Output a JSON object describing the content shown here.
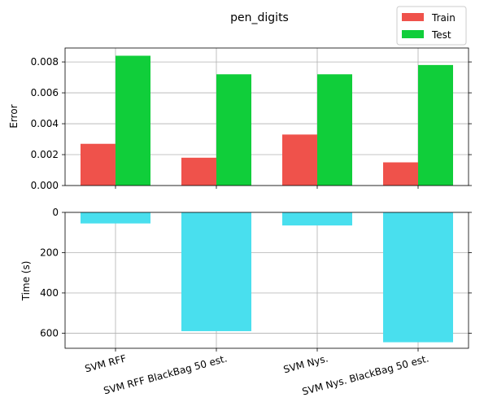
{
  "chart_data": [
    {
      "type": "bar",
      "title": "pen_digits",
      "ylabel": "Error",
      "categories": [
        "SVM RFF",
        "SVM RFF BlackBag 50 est.",
        "SVM Nys.",
        "SVM Nys. BlackBag 50 est."
      ],
      "series": [
        {
          "name": "Train",
          "color": "#ef524b",
          "values": [
            0.0027,
            0.0018,
            0.0033,
            0.0015
          ]
        },
        {
          "name": "Test",
          "color": "#10ce3a",
          "values": [
            0.0084,
            0.0072,
            0.0072,
            0.0078
          ]
        }
      ],
      "ylim": [
        0,
        0.0089
      ],
      "yticks": [
        0,
        0.002,
        0.004,
        0.006,
        0.008
      ],
      "ytick_labels": [
        "0.000",
        "0.002",
        "0.004",
        "0.006",
        "0.008"
      ],
      "grid": true,
      "legend": "top-right"
    },
    {
      "type": "bar",
      "ylabel": "Time (s)",
      "categories": [
        "SVM RFF",
        "SVM RFF BlackBag 50 est.",
        "SVM Nys.",
        "SVM Nys. BlackBag 50 est."
      ],
      "series": [
        {
          "color": "#49dfee",
          "values": [
            55,
            590,
            65,
            645
          ]
        }
      ],
      "ylim": [
        0,
        675
      ],
      "y_inverted": true,
      "yticks": [
        0,
        200,
        400,
        600
      ],
      "ytick_labels": [
        "0",
        "200",
        "400",
        "600"
      ],
      "grid": true
    }
  ]
}
